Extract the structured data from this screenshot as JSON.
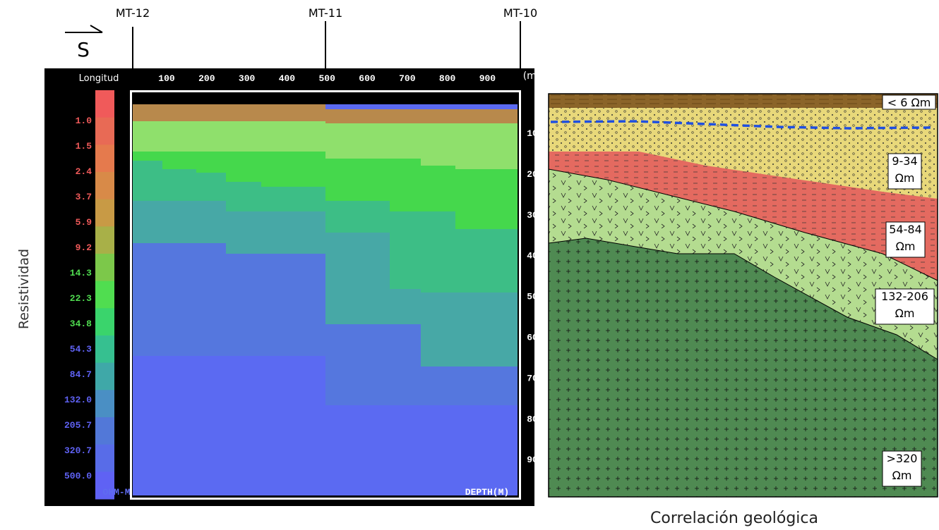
{
  "header": {
    "direction": "S",
    "stations": [
      "MT-12",
      "MT-11",
      "MT-10"
    ]
  },
  "section": {
    "x_label": "Longitud",
    "x_ticks": [
      "100",
      "200",
      "300",
      "400",
      "500",
      "600",
      "700",
      "800",
      "900"
    ],
    "x_unit": "(m)",
    "depth_ticks": [
      "10",
      "20",
      "30",
      "40",
      "50",
      "60",
      "70",
      "80",
      "90"
    ],
    "footer_left": "OHM-M",
    "footer_right": "DEPTH(M)"
  },
  "legend": {
    "title": "Resistividad",
    "labels": [
      "1.0",
      "1.5",
      "2.4",
      "3.7",
      "5.9",
      "9.2",
      "14.3",
      "22.3",
      "34.8",
      "54.3",
      "84.7",
      "132.0",
      "205.7",
      "320.7",
      "500.0"
    ]
  },
  "geology": {
    "title": "Correlación geológica",
    "units": [
      {
        "lines": [
          "< 6 Ωm"
        ]
      },
      {
        "lines": [
          "9-34",
          "Ωm"
        ]
      },
      {
        "lines": [
          "54-84",
          "Ωm"
        ]
      },
      {
        "lines": [
          "132-206",
          "Ωm"
        ]
      },
      {
        "lines": [
          ">320",
          "Ωm"
        ]
      }
    ]
  }
}
